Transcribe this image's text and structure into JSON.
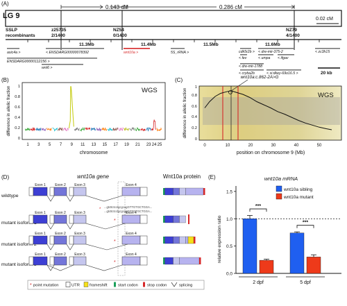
{
  "panelA": {
    "label": "(A)",
    "lg": "LG 9",
    "dist1": "0.143 cM",
    "dist2": "0.286 cM",
    "scale_cm": "0.02 cM",
    "sslp_title": "SSLP",
    "sslp_title2": "recombinants",
    "markers": [
      {
        "name": "z25735",
        "recomb": "2/1400"
      },
      {
        "name": "NZ54",
        "recomb": "0/1400"
      },
      {
        "name": "NZ79",
        "recomb": "4/1400"
      }
    ],
    "mb_ticks": [
      "11.3Mb",
      "11.4Mb",
      "11.5Mb",
      "11.6Mb"
    ],
    "genes": {
      "asic4a": "asic4a >",
      "ensdarg1": "< ENSDARG00000078392",
      "ensdarg2": "ENSDARG00000112156 >",
      "wnt6": "wnt6 >",
      "wnt10a": "wnt10a >",
      "5s_rrna": "5S_rRNA >",
      "cdk5r2b": "cdk5r2b >",
      "fev": "< fev",
      "dre_mir_1788": "< dre-mir-1788",
      "cryba2b": "< cryba2b",
      "dre_mir_375_2": "< dre-mir-375-2",
      "umpa": "< umpa",
      "ifgav": "< ifgav",
      "sidkey": "< si:dkey-69o16.5 >",
      "zc3h15": "< zc3h15"
    },
    "scalebar_kb": "20 kb",
    "highlight_color": "#d62728"
  },
  "panelB": {
    "label": "(B)",
    "tag": "WGS",
    "ylabel": "difference in allelic fraction",
    "xlabel": "chromosome",
    "yticks": [
      "0",
      "0.2",
      "0.4",
      "0.6",
      "0.8",
      "1"
    ]
  },
  "panelC": {
    "label": "(C)",
    "tag": "WGS",
    "mutation": "wnt10a:c.862-2A>G",
    "ylabel": "difference in allelic fraction",
    "xlabel": "position on chromosome 9 (Mb)"
  },
  "panelD": {
    "label": "(D)",
    "gene_title": "wnt10a gene",
    "protein_title": "Wnt10a protein",
    "rows": [
      "wildtype",
      "mutant isoform 1",
      "mutant isoform 2",
      "mutant isoform 3"
    ],
    "exons": [
      "Exon 1",
      "Exon 2",
      "Exon 3",
      "Exon 4"
    ],
    "seq1": "...gtcttctcctgcgcagGTTGTGCTGGA...",
    "seq2": "...gtcttctcctgcgcggGTTGTGCTGGA...",
    "legend": [
      {
        "symbol": "*",
        "label": "point mutation"
      },
      {
        "symbol": "box",
        "label": "UTR"
      },
      {
        "symbol": "yellow",
        "label": "frameshift"
      },
      {
        "symbol": "green",
        "label": "start codon"
      },
      {
        "symbol": "red",
        "label": "stop codon"
      },
      {
        "symbol": "splice",
        "label": "splicing"
      }
    ]
  },
  "panelE": {
    "label": "(E)",
    "title": "wnt10a mRNA",
    "ylabel": "relative expression ratio",
    "sig": "***"
  },
  "chart_data": [
    {
      "type": "bar",
      "title": "wnt10a mRNA",
      "xlabel": "",
      "ylabel": "relative expression ratio",
      "categories": [
        "2 dpf",
        "5 dpf"
      ],
      "series": [
        {
          "name": "wnt10a sibling",
          "values": [
            1.0,
            0.74
          ],
          "errors": [
            0.06,
            0.02
          ],
          "color": "#1f5ff0"
        },
        {
          "name": "wnt10a mutant",
          "values": [
            0.24,
            0.3
          ],
          "errors": [
            0.02,
            0.04
          ],
          "color": "#ee3a1a"
        }
      ],
      "ylim": [
        0,
        1.6
      ],
      "yticks": [
        "0.0",
        "0.5",
        "1.0",
        "1.5"
      ],
      "reference_line": 1.0,
      "significance": [
        "***",
        "***"
      ]
    }
  ]
}
